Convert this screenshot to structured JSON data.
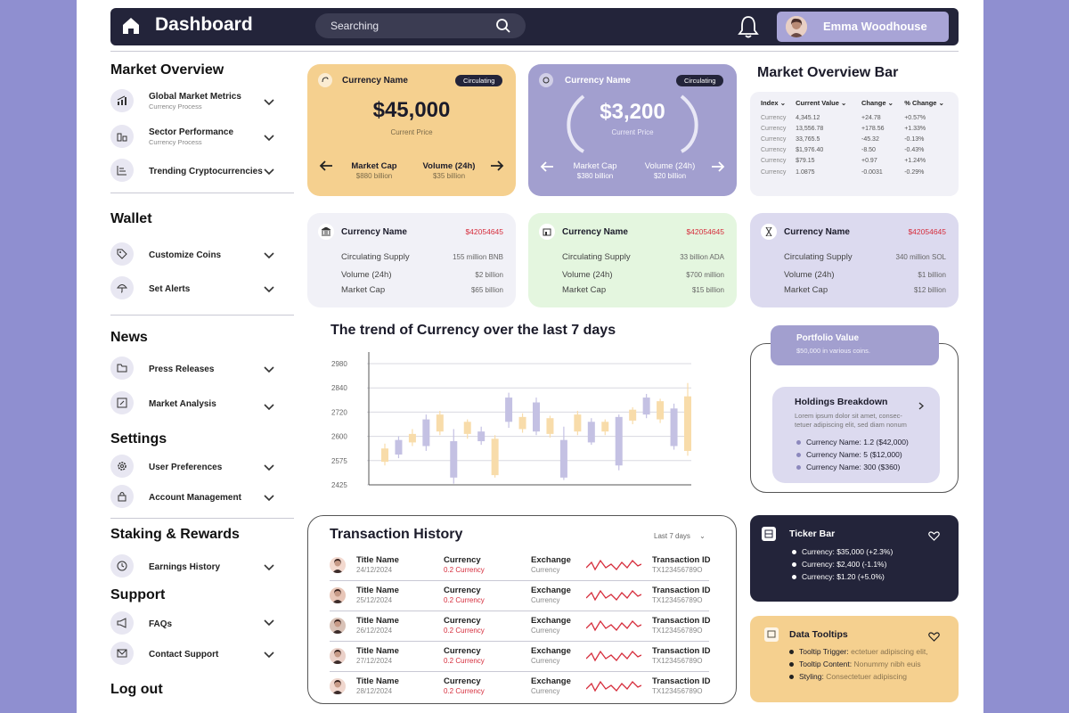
{
  "header": {
    "title": "Dashboard",
    "search_placeholder": "Searching",
    "user_name": "Emma Woodhouse"
  },
  "sidebar": {
    "market_overview": {
      "title": "Market Overview",
      "items": [
        {
          "label": "Global Market Metrics",
          "sub": "Currency Process",
          "icon": "bar-chart-icon"
        },
        {
          "label": "Sector Performance",
          "sub": "Currency Process",
          "icon": "building-chart-icon"
        },
        {
          "label": "Trending Cryptocurrencies",
          "icon": "list-chart-icon"
        }
      ]
    },
    "wallet": {
      "title": "Wallet",
      "items": [
        {
          "label": "Customize Coins",
          "icon": "tag-icon"
        },
        {
          "label": "Set Alerts",
          "icon": "umbrella-icon"
        }
      ]
    },
    "news": {
      "title": "News",
      "items": [
        {
          "label": "Press Releases",
          "icon": "folder-icon"
        },
        {
          "label": "Market Analysis",
          "icon": "edit-icon"
        }
      ]
    },
    "settings": {
      "title": "Settings",
      "items": [
        {
          "label": "User Preferences",
          "icon": "gear-icon"
        },
        {
          "label": "Account Management",
          "icon": "lock-icon"
        }
      ]
    },
    "staking": {
      "title": "Staking & Rewards",
      "items": [
        {
          "label": "Earnings History",
          "icon": "clock-icon"
        }
      ]
    },
    "support": {
      "title": "Support",
      "items": [
        {
          "label": "FAQs",
          "icon": "megaphone-icon"
        },
        {
          "label": "Contact Support",
          "icon": "mail-icon"
        }
      ]
    },
    "logout": "Log out"
  },
  "price_cards": [
    {
      "name": "Currency Name",
      "badge": "Circulating",
      "price": "$45,000",
      "price_label": "Current Price",
      "cap_label": "Market Cap",
      "cap_value": "$880 billion",
      "vol_label": "Volume (24h)",
      "vol_value": "$35 billion",
      "bg": "#f5d08f"
    },
    {
      "name": "Currency Name",
      "badge": "Circulating",
      "price": "$3,200",
      "price_label": "Current Price",
      "cap_label": "Market Cap",
      "cap_value": "$380 billion",
      "vol_label": "Volume (24h)",
      "vol_value": "$20 billion",
      "bg": "#a29fcf"
    }
  ],
  "overview_bar": {
    "title": "Market Overview Bar",
    "headers": [
      "Index",
      "Current Value",
      "Change",
      "% Change"
    ],
    "rows": [
      [
        "Currency",
        "4,345.12",
        "+24.78",
        "+0.57%"
      ],
      [
        "Currency",
        "13,556.78",
        "+178.56",
        "+1.33%"
      ],
      [
        "Currency",
        "33,765.5",
        "-45.32",
        "-0.13%"
      ],
      [
        "Currency",
        "$1,976.40",
        "-8.50",
        "-0.43%"
      ],
      [
        "Currency",
        "$79.15",
        "+0.97",
        "+1.24%"
      ],
      [
        "Currency",
        "1.0875",
        "-0.0031",
        "-0.29%"
      ]
    ]
  },
  "info_cards": [
    {
      "name": "Currency Name",
      "amount": "$42054645",
      "rows": [
        [
          "Circulating Supply",
          "155 million BNB"
        ],
        [
          "Volume (24h)",
          "$2 billion"
        ],
        [
          "Market Cap",
          "$65 billion"
        ]
      ],
      "bg": "#f1f1f7",
      "icon": "bank-icon"
    },
    {
      "name": "Currency Name",
      "amount": "$42054645",
      "rows": [
        [
          "Circulating Supply",
          "33 billion ADA"
        ],
        [
          "Volume (24h)",
          "$700 million"
        ],
        [
          "Market Cap",
          "$15 billion"
        ]
      ],
      "bg": "#e4f6df",
      "icon": "building-icon"
    },
    {
      "name": "Currency Name",
      "amount": "$42054645",
      "rows": [
        [
          "Circulating Supply",
          "340 million SOL"
        ],
        [
          "Volume (24h)",
          "$1 billion"
        ],
        [
          "Market Cap",
          "$12 billion"
        ]
      ],
      "bg": "#dcdaef",
      "icon": "hourglass-icon"
    }
  ],
  "chart_data": {
    "type": "candlestick",
    "title": "The trend of Currency over the last 7 days",
    "ytick_labels": [
      "2980",
      "2840",
      "2720",
      "2600",
      "2575",
      "2425"
    ],
    "ylim": [
      0,
      5
    ],
    "candles": [
      {
        "open": 0.95,
        "close": 1.5,
        "high": 1.7,
        "low": 0.8,
        "color": "yellow"
      },
      {
        "open": 1.25,
        "close": 1.85,
        "high": 2.0,
        "low": 1.1,
        "color": "purple"
      },
      {
        "open": 1.75,
        "close": 2.1,
        "high": 2.3,
        "low": 1.6,
        "color": "yellow"
      },
      {
        "open": 1.6,
        "close": 2.7,
        "high": 2.9,
        "low": 1.4,
        "color": "purple"
      },
      {
        "open": 2.9,
        "close": 2.2,
        "high": 3.05,
        "low": 2.05,
        "color": "yellow"
      },
      {
        "open": 0.3,
        "close": 1.8,
        "high": 2.3,
        "low": 0.05,
        "color": "purple"
      },
      {
        "open": 2.1,
        "close": 2.6,
        "high": 2.7,
        "low": 1.9,
        "color": "yellow"
      },
      {
        "open": 1.8,
        "close": 2.2,
        "high": 2.4,
        "low": 1.65,
        "color": "purple"
      },
      {
        "open": 1.9,
        "close": 0.4,
        "high": 2.05,
        "low": 0.3,
        "color": "yellow"
      },
      {
        "open": 2.6,
        "close": 3.6,
        "high": 3.8,
        "low": 2.35,
        "color": "purple"
      },
      {
        "open": 2.3,
        "close": 2.8,
        "high": 2.95,
        "low": 2.15,
        "color": "yellow"
      },
      {
        "open": 2.2,
        "close": 3.4,
        "high": 3.6,
        "low": 2.05,
        "color": "purple"
      },
      {
        "open": 2.1,
        "close": 2.75,
        "high": 2.85,
        "low": 1.95,
        "color": "yellow"
      },
      {
        "open": 0.3,
        "close": 1.85,
        "high": 2.4,
        "low": 0.2,
        "color": "purple"
      },
      {
        "open": 2.2,
        "close": 2.9,
        "high": 3.05,
        "low": 2.05,
        "color": "yellow"
      },
      {
        "open": 1.75,
        "close": 2.6,
        "high": 2.75,
        "low": 1.65,
        "color": "purple"
      },
      {
        "open": 2.2,
        "close": 2.6,
        "high": 2.7,
        "low": 2.05,
        "color": "yellow"
      },
      {
        "open": 0.8,
        "close": 2.8,
        "high": 2.9,
        "low": 0.6,
        "color": "purple"
      },
      {
        "open": 2.65,
        "close": 3.1,
        "high": 3.2,
        "low": 2.5,
        "color": "yellow"
      },
      {
        "open": 2.9,
        "close": 3.6,
        "high": 3.75,
        "low": 2.75,
        "color": "purple"
      },
      {
        "open": 2.7,
        "close": 3.45,
        "high": 3.55,
        "low": 2.55,
        "color": "yellow"
      },
      {
        "open": 1.6,
        "close": 3.15,
        "high": 3.35,
        "low": 1.45,
        "color": "purple"
      },
      {
        "open": 1.4,
        "close": 3.65,
        "high": 4.2,
        "low": 1.2,
        "color": "yellow"
      }
    ]
  },
  "portfolio": {
    "title": "Portfolio Value",
    "sub": "$50,000 in various coins."
  },
  "holdings": {
    "title": "Holdings Breakdown",
    "desc": "Lorem ipsum dolor sit amet, consec-tetuer adipiscing elit, sed diam nonum",
    "items": [
      "Currency Name: 1.2  ($42,000)",
      "Currency Name: 5  ($12,000)",
      "Currency Name: 300 ($360)"
    ]
  },
  "transactions": {
    "title": "Transaction History",
    "filter": "Last 7 days",
    "rows": [
      {
        "title": "Title Name",
        "date": "24/12/2024",
        "currency": "Currency",
        "amount": "0.2 Currency",
        "exchange": "Exchange",
        "exchange_sub": "Currency",
        "tx_label": "Transaction ID",
        "tx_id": "TX123456789O"
      },
      {
        "title": "Title Name",
        "date": "25/12/2024",
        "currency": "Currency",
        "amount": "0.2 Currency",
        "exchange": "Exchange",
        "exchange_sub": "Currency",
        "tx_label": "Transaction ID",
        "tx_id": "TX123456789O"
      },
      {
        "title": "Title Name",
        "date": "26/12/2024",
        "currency": "Currency",
        "amount": "0.2 Currency",
        "exchange": "Exchange",
        "exchange_sub": "Currency",
        "tx_label": "Transaction ID",
        "tx_id": "TX123456789O"
      },
      {
        "title": "Title Name",
        "date": "27/12/2024",
        "currency": "Currency",
        "amount": "0.2 Currency",
        "exchange": "Exchange",
        "exchange_sub": "Currency",
        "tx_label": "Transaction ID",
        "tx_id": "TX123456789O"
      },
      {
        "title": "Title Name",
        "date": "28/12/2024",
        "currency": "Currency",
        "amount": "0.2 Currency",
        "exchange": "Exchange",
        "exchange_sub": "Currency",
        "tx_label": "Transaction ID",
        "tx_id": "TX123456789O"
      }
    ]
  },
  "ticker": {
    "title": "Ticker Bar",
    "items": [
      "Currency: $35,000 (+2.3%)",
      "Currency: $2,400 (-1.1%)",
      "Currency: $1.20 (+5.0%)"
    ]
  },
  "tooltips": {
    "title": "Data Tooltips",
    "items": [
      {
        "label": "Tooltip Trigger:",
        "value": "ectetuer adipiscing elit,"
      },
      {
        "label": "Tooltip Content:",
        "value": "Nonummy nibh euis"
      },
      {
        "label": "Styling:",
        "value": "Consectetuer adipiscing"
      }
    ]
  },
  "colors": {
    "dark": "#23243a",
    "purple": "#a29fcf",
    "yellow": "#f5d08f",
    "red": "#d62d3c",
    "candle_purple": "#c4c1e3",
    "candle_yellow": "#f8dcaa"
  }
}
